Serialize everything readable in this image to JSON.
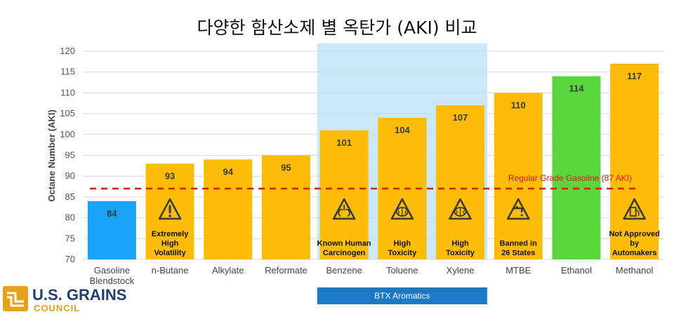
{
  "chart_data": {
    "type": "bar",
    "title": "다양한 함산소제 별 옥탄가 (AKI) 비교",
    "ylabel": "Octane Number (AKI)",
    "xlabel": "",
    "ylim": [
      70,
      120
    ],
    "yticks": [
      70,
      75,
      80,
      85,
      90,
      95,
      100,
      105,
      110,
      115,
      120
    ],
    "grid": true,
    "categories": [
      "Gasoline Blendstock",
      "n-Butane",
      "Alkylate",
      "Reformate",
      "Benzene",
      "Toluene",
      "Xylene",
      "MTBE",
      "Ethanol",
      "Methanol"
    ],
    "values": [
      84,
      93,
      94,
      95,
      101,
      104,
      107,
      110,
      114,
      117
    ],
    "bar_colors": [
      "#1aa3f5",
      "#fcbd09",
      "#fcbd09",
      "#fcbd09",
      "#fcbd09",
      "#fcbd09",
      "#fcbd09",
      "#fcbd09",
      "#5cd63d",
      "#fcbd09"
    ],
    "notes": [
      {
        "index": 1,
        "icon": "warning-icon",
        "text": "Extremely High Volatility"
      },
      {
        "index": 4,
        "icon": "lungs-icon",
        "text": "Known Human Carcinogen"
      },
      {
        "index": 5,
        "icon": "brain-icon",
        "text": "High Toxicity"
      },
      {
        "index": 6,
        "icon": "brain-icon",
        "text": "High Toxicity"
      },
      {
        "index": 7,
        "icon": "faucet-icon",
        "text": "Banned in 26 States"
      },
      {
        "index": 9,
        "icon": "gas-pump-icon",
        "text": "Not Approved by Automakers"
      }
    ],
    "reference_line": {
      "value": 87,
      "label": "Regular Grade Gasoline (87 AKI)",
      "color": "#e0141b"
    },
    "highlight_group": {
      "label": "BTX Aromatics",
      "start_index": 4,
      "end_index": 6,
      "fill": "#c9e8f9",
      "label_bg": "#1a7ac7"
    }
  },
  "logo": {
    "line1": "U.S. GRAINS",
    "line2": "COUNCIL"
  }
}
